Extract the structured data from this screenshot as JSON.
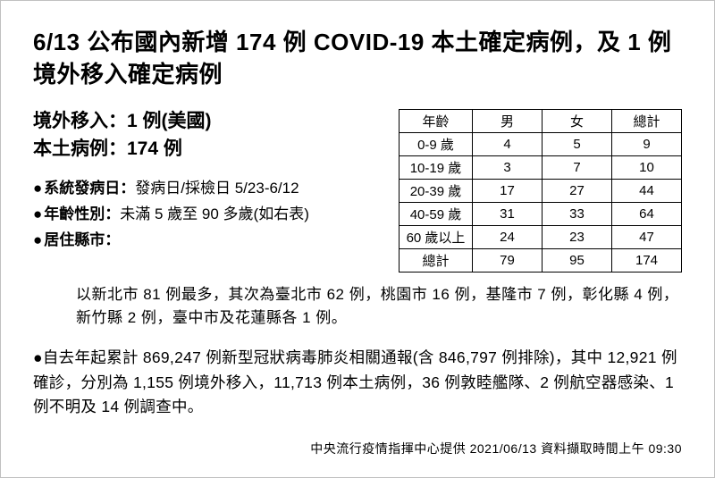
{
  "title": "6/13 公布國內新增 174 例 COVID-19 本土確定病例，及 1 例境外移入確定病例",
  "sub": {
    "imported": "境外移入：1 例(美國)",
    "local": "本土病例：174 例"
  },
  "bullets": {
    "b1_label": "系統發病日：",
    "b1_val": "發病日/採檢日 5/23-6/12",
    "b2_label": "年齡性別：",
    "b2_val": "未滿 5 歲至 90 多歲(如右表)",
    "b3_label": "居住縣市："
  },
  "table": {
    "headers": {
      "age": "年齡",
      "male": "男",
      "female": "女",
      "total": "總計"
    },
    "rows": [
      {
        "age": "0-9 歲",
        "m": "4",
        "f": "5",
        "t": "9"
      },
      {
        "age": "10-19 歲",
        "m": "3",
        "f": "7",
        "t": "10"
      },
      {
        "age": "20-39 歲",
        "m": "17",
        "f": "27",
        "t": "44"
      },
      {
        "age": "40-59 歲",
        "m": "31",
        "f": "33",
        "t": "64"
      },
      {
        "age": "60 歲以上",
        "m": "24",
        "f": "23",
        "t": "47"
      },
      {
        "age": "總計",
        "m": "79",
        "f": "95",
        "t": "174"
      }
    ],
    "col_widths": {
      "age": 82,
      "m": 78,
      "f": 78,
      "t": 78
    },
    "border_color": "#000000",
    "font_size": 15
  },
  "county_text": "以新北市 81 例最多，其次為臺北市 62 例，桃園市 16 例，基隆市 7 例，彰化縣 4 例，新竹縣 2 例，臺中市及花蓮縣各 1 例。",
  "cumulative_text": "自去年起累計 869,247 例新型冠狀病毒肺炎相關通報(含 846,797 例排除)，其中 12,921 例確診，分別為 1,155 例境外移入，11,713 例本土病例，36 例敦睦艦隊、2 例航空器感染、1 例不明及 14 例調查中。",
  "footer": "中央流行疫情指揮中心提供  2021/06/13  資料擷取時間上午 09:30",
  "style": {
    "background": "#ffffff",
    "text_color": "#000000",
    "title_fontsize": 26,
    "sub_fontsize": 21,
    "body_fontsize": 17,
    "footer_fontsize": 14
  }
}
